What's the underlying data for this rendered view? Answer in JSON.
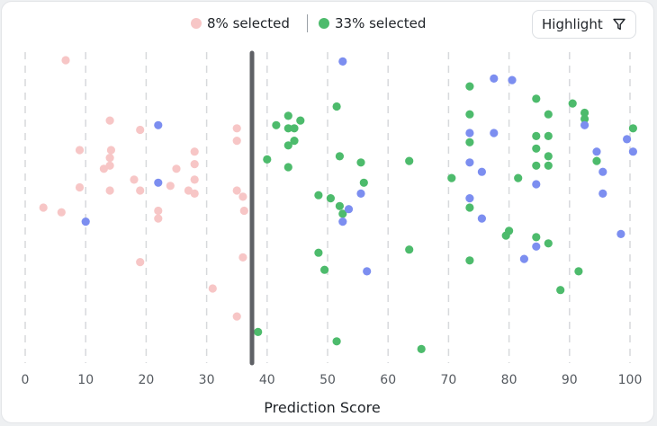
{
  "legend": {
    "unselected_label": "8% selected",
    "selected_label": "33% selected"
  },
  "highlight_button": {
    "label": "Highlight",
    "icon": "filter-icon"
  },
  "colors": {
    "unselected": "#f7c6c6",
    "selected": "#4dbb6c",
    "highlight": "#7c8ef0",
    "threshold": "#5f6166",
    "grid": "#d7d9dc"
  },
  "chart_data": {
    "type": "scatter",
    "title": "",
    "xlabel": "Prediction Score",
    "ylabel": "",
    "xlim": [
      0,
      100
    ],
    "xticks": [
      0,
      10,
      20,
      30,
      40,
      50,
      60,
      70,
      80,
      90,
      100
    ],
    "grid": "vertical dashed",
    "threshold": 37.5,
    "series": [
      {
        "group": "unselected",
        "points": [
          [
            6.7,
            0.026
          ],
          [
            14,
            0.22
          ],
          [
            19,
            0.25
          ],
          [
            35,
            0.245
          ],
          [
            35,
            0.285
          ],
          [
            9,
            0.315
          ],
          [
            14.2,
            0.315
          ],
          [
            14,
            0.34
          ],
          [
            28,
            0.32
          ],
          [
            13,
            0.375
          ],
          [
            14,
            0.365
          ],
          [
            28,
            0.36
          ],
          [
            25,
            0.375
          ],
          [
            18,
            0.41
          ],
          [
            28,
            0.41
          ],
          [
            9,
            0.435
          ],
          [
            14,
            0.445
          ],
          [
            19,
            0.445
          ],
          [
            24,
            0.43
          ],
          [
            27,
            0.445
          ],
          [
            28,
            0.455
          ],
          [
            35,
            0.445
          ],
          [
            36,
            0.465
          ],
          [
            3,
            0.5
          ],
          [
            6,
            0.515
          ],
          [
            22,
            0.51
          ],
          [
            22,
            0.535
          ],
          [
            36.2,
            0.51
          ],
          [
            19,
            0.675
          ],
          [
            36,
            0.66
          ],
          [
            31,
            0.76
          ],
          [
            35,
            0.85
          ]
        ]
      },
      {
        "group": "selected",
        "points": [
          [
            51.5,
            0.175
          ],
          [
            73.5,
            0.11
          ],
          [
            84.5,
            0.15
          ],
          [
            90.5,
            0.165
          ],
          [
            43.5,
            0.205
          ],
          [
            73.5,
            0.2
          ],
          [
            86.5,
            0.2
          ],
          [
            92.5,
            0.195
          ],
          [
            45.5,
            0.22
          ],
          [
            41.5,
            0.235
          ],
          [
            43.5,
            0.245
          ],
          [
            44.5,
            0.245
          ],
          [
            92.5,
            0.215
          ],
          [
            100.5,
            0.245
          ],
          [
            84.5,
            0.27
          ],
          [
            86.5,
            0.27
          ],
          [
            43.5,
            0.3
          ],
          [
            44.5,
            0.285
          ],
          [
            73.5,
            0.29
          ],
          [
            84.5,
            0.31
          ],
          [
            86.5,
            0.335
          ],
          [
            40,
            0.345
          ],
          [
            52,
            0.335
          ],
          [
            55.5,
            0.355
          ],
          [
            63.5,
            0.35
          ],
          [
            94.5,
            0.35
          ],
          [
            43.5,
            0.37
          ],
          [
            84.5,
            0.365
          ],
          [
            86.5,
            0.365
          ],
          [
            70.5,
            0.405
          ],
          [
            81.5,
            0.405
          ],
          [
            56,
            0.42
          ],
          [
            48.5,
            0.46
          ],
          [
            50.5,
            0.47
          ],
          [
            52,
            0.495
          ],
          [
            52.5,
            0.52
          ],
          [
            73.5,
            0.5
          ],
          [
            80,
            0.575
          ],
          [
            79.5,
            0.59
          ],
          [
            84.5,
            0.595
          ],
          [
            86.5,
            0.615
          ],
          [
            63.5,
            0.635
          ],
          [
            48.5,
            0.645
          ],
          [
            73.5,
            0.67
          ],
          [
            49.5,
            0.7
          ],
          [
            91.5,
            0.705
          ],
          [
            88.5,
            0.765
          ],
          [
            38.5,
            0.9
          ],
          [
            51.5,
            0.93
          ],
          [
            65.5,
            0.955
          ]
        ]
      },
      {
        "group": "highlight",
        "points": [
          [
            52.5,
            0.03
          ],
          [
            77.5,
            0.085
          ],
          [
            80.5,
            0.09
          ],
          [
            22,
            0.235
          ],
          [
            77.5,
            0.26
          ],
          [
            92.5,
            0.235
          ],
          [
            73.5,
            0.26
          ],
          [
            99.5,
            0.28
          ],
          [
            94.5,
            0.32
          ],
          [
            100.5,
            0.32
          ],
          [
            73.5,
            0.355
          ],
          [
            75.5,
            0.385
          ],
          [
            95.5,
            0.385
          ],
          [
            22,
            0.42
          ],
          [
            84.5,
            0.425
          ],
          [
            55.5,
            0.455
          ],
          [
            95.5,
            0.455
          ],
          [
            73.5,
            0.47
          ],
          [
            53.5,
            0.505
          ],
          [
            10,
            0.545
          ],
          [
            52.5,
            0.545
          ],
          [
            75.5,
            0.535
          ],
          [
            98.5,
            0.585
          ],
          [
            84.5,
            0.625
          ],
          [
            82.5,
            0.665
          ],
          [
            56.5,
            0.705
          ]
        ]
      }
    ]
  }
}
